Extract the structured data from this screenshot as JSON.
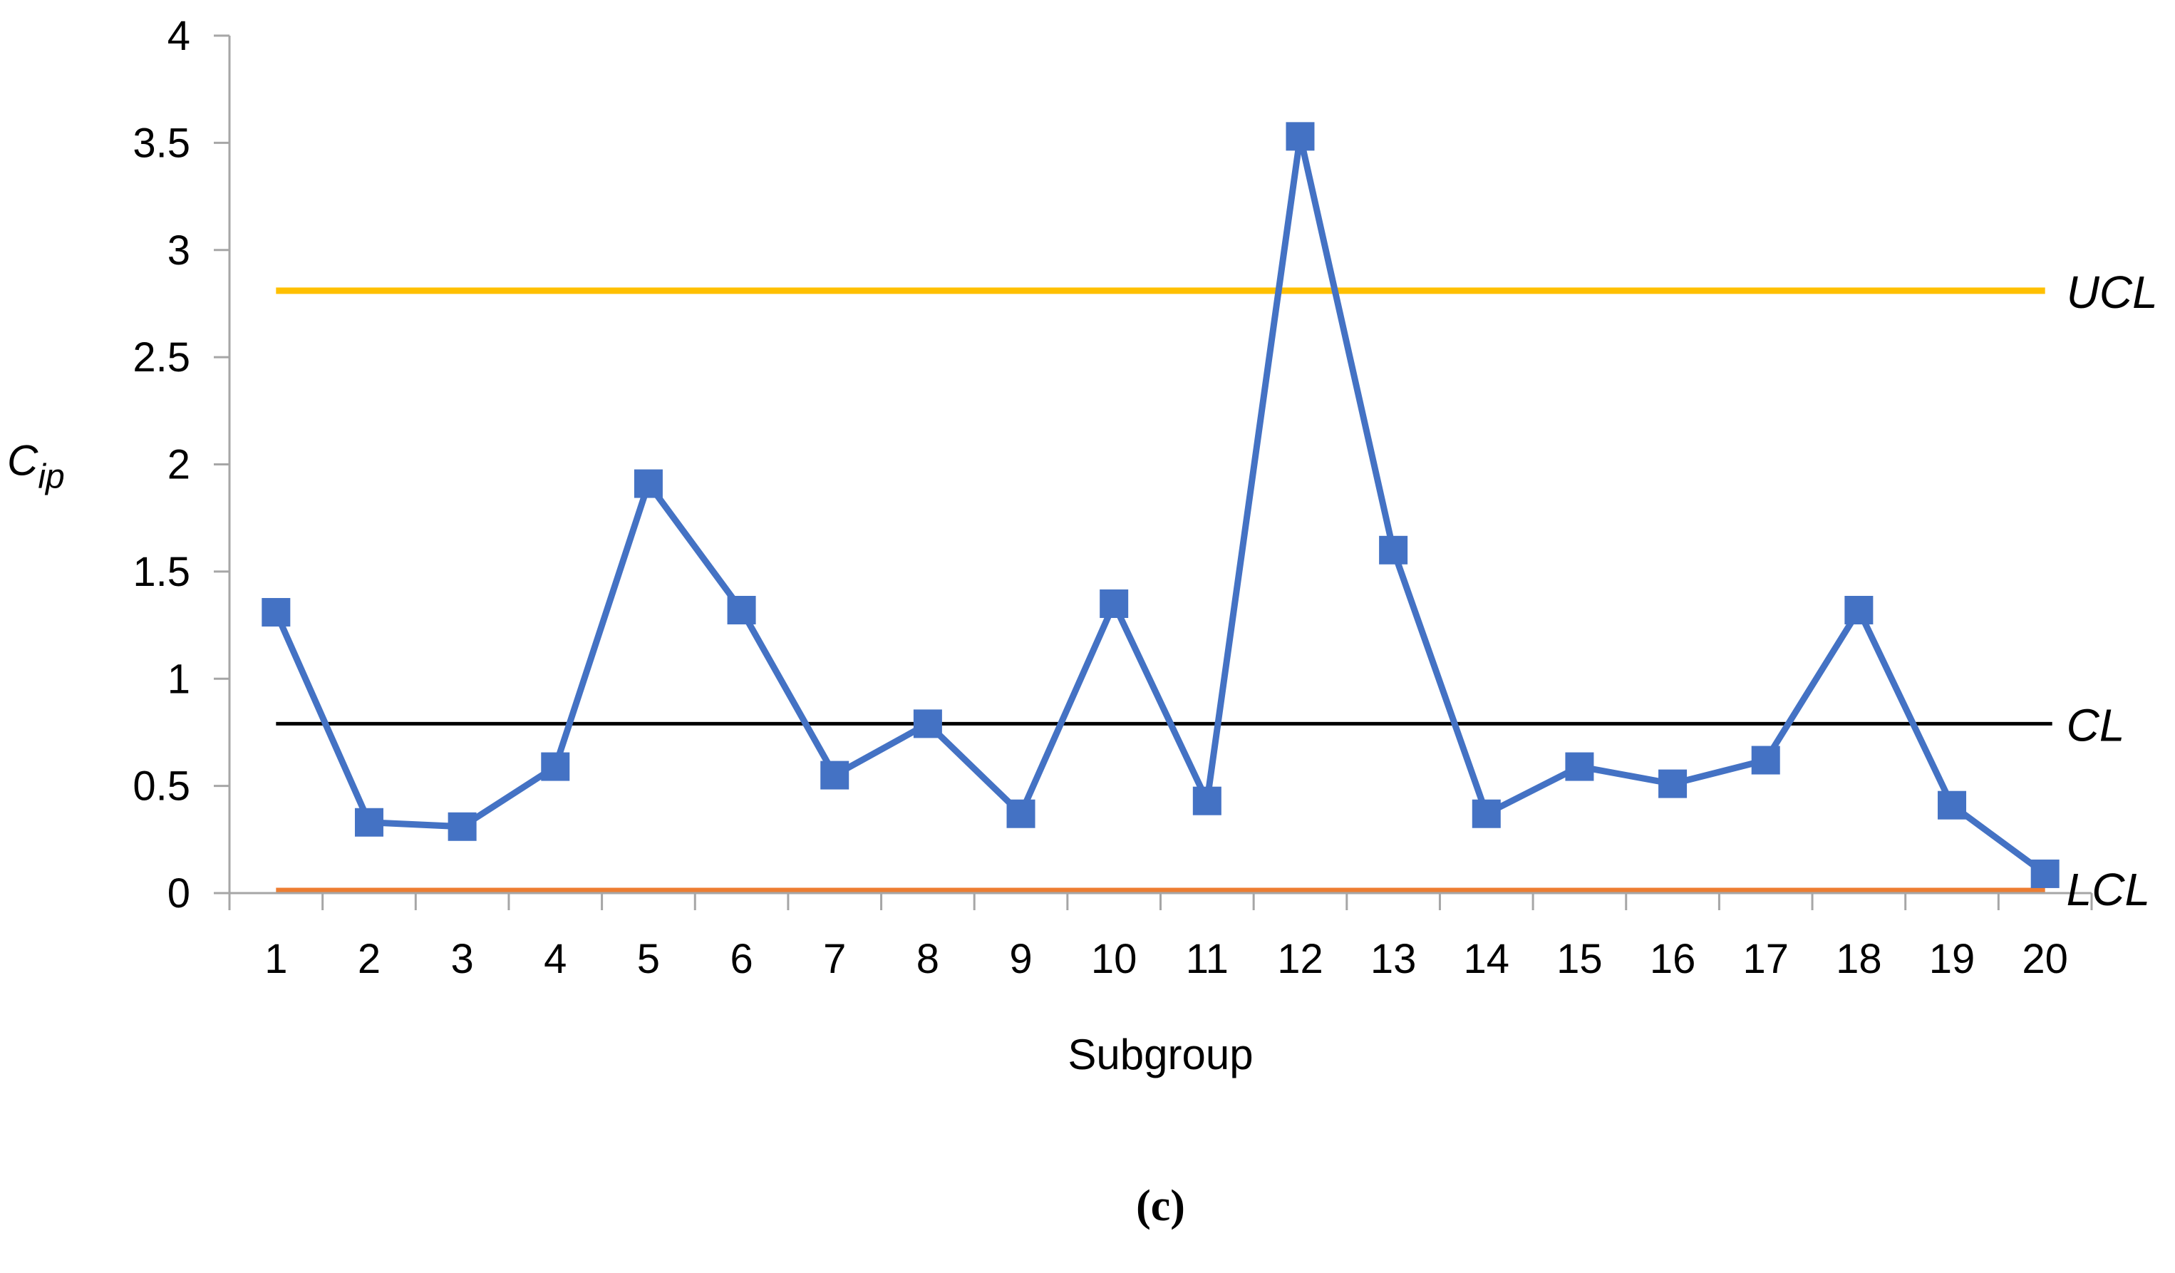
{
  "chart_data": {
    "type": "line",
    "title": "",
    "xlabel": "Subgroup",
    "ylabel": {
      "main": "C",
      "subscript": "ip"
    },
    "ylim": [
      0,
      4
    ],
    "y_ticks": [
      "0",
      "0.5",
      "1",
      "1.5",
      "2",
      "2.5",
      "3",
      "3.5",
      "4"
    ],
    "categories": [
      "1",
      "2",
      "3",
      "4",
      "5",
      "6",
      "7",
      "8",
      "9",
      "10",
      "11",
      "12",
      "13",
      "14",
      "15",
      "16",
      "17",
      "18",
      "19",
      "20"
    ],
    "series": [
      {
        "values": [
          1.31,
          0.33,
          0.31,
          0.59,
          1.91,
          1.32,
          0.55,
          0.79,
          0.37,
          1.35,
          0.43,
          3.53,
          1.6,
          0.37,
          0.59,
          0.51,
          0.62,
          1.32,
          0.41,
          0.09
        ],
        "color": "#4472c4",
        "marker": "square"
      }
    ],
    "limits": [
      {
        "label": "UCL",
        "value": 2.81,
        "color": "#ffc000"
      },
      {
        "label": "CL",
        "value": 0.79,
        "color": "#000000"
      },
      {
        "label": "LCL",
        "value": 0.01,
        "color": "#ed7d31"
      }
    ],
    "grid": false,
    "legend": "none",
    "caption": "(c)"
  }
}
